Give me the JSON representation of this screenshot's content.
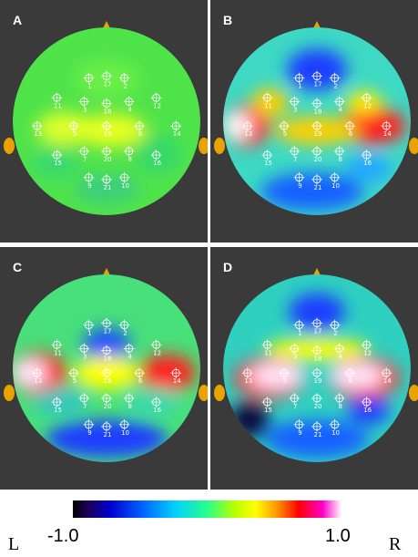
{
  "panels": [
    {
      "letter": "A",
      "blobs": []
    },
    {
      "letter": "B",
      "blobs": []
    },
    {
      "letter": "C",
      "blobs": []
    },
    {
      "letter": "D",
      "blobs": []
    }
  ],
  "electrodes": [
    {
      "id": "1",
      "lx": -0.19,
      "ly": -0.46
    },
    {
      "id": "17",
      "lx": 0.0,
      "ly": -0.48
    },
    {
      "id": "2",
      "lx": 0.19,
      "ly": -0.46
    },
    {
      "id": "11",
      "lx": -0.53,
      "ly": -0.25
    },
    {
      "id": "3",
      "lx": -0.24,
      "ly": -0.21
    },
    {
      "id": "18",
      "lx": 0.0,
      "ly": -0.19
    },
    {
      "id": "4",
      "lx": 0.24,
      "ly": -0.21
    },
    {
      "id": "12",
      "lx": 0.53,
      "ly": -0.25
    },
    {
      "id": "13",
      "lx": -0.74,
      "ly": 0.05
    },
    {
      "id": "5",
      "lx": -0.35,
      "ly": 0.05
    },
    {
      "id": "19",
      "lx": 0.0,
      "ly": 0.05
    },
    {
      "id": "6",
      "lx": 0.35,
      "ly": 0.05
    },
    {
      "id": "14",
      "lx": 0.74,
      "ly": 0.05
    },
    {
      "id": "15",
      "lx": -0.53,
      "ly": 0.36
    },
    {
      "id": "7",
      "lx": -0.24,
      "ly": 0.32
    },
    {
      "id": "20",
      "lx": 0.0,
      "ly": 0.32
    },
    {
      "id": "8",
      "lx": 0.24,
      "ly": 0.32
    },
    {
      "id": "16",
      "lx": 0.53,
      "ly": 0.36
    },
    {
      "id": "9",
      "lx": -0.19,
      "ly": 0.6
    },
    {
      "id": "21",
      "lx": 0.0,
      "ly": 0.62
    },
    {
      "id": "10",
      "lx": 0.19,
      "ly": 0.6
    }
  ],
  "colorbar": {
    "min_label": "-1.0",
    "max_label": "1.0"
  },
  "sides": {
    "left": "L",
    "right": "R"
  },
  "colors": {
    "panel_bg": "#3a3a3a",
    "ear": "#e8a300",
    "nose": "#e8a300",
    "label": "#ffffff"
  }
}
